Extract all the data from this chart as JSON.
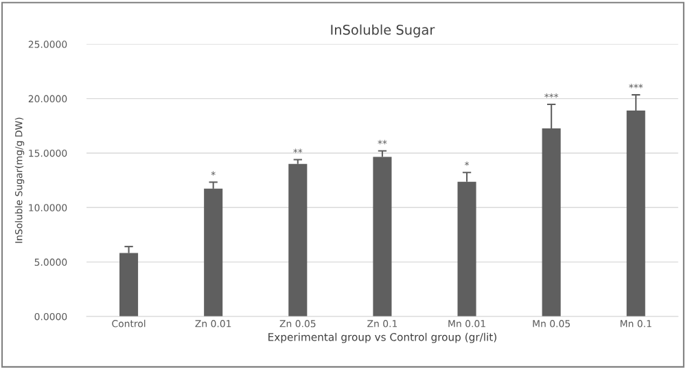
{
  "chart_data": {
    "type": "bar",
    "title": "InSoluble Sugar",
    "xlabel": "Experimental group vs Control group (gr/lit)",
    "ylabel": "InSoluble Sugar(mg/g DW)",
    "categories": [
      "Control",
      "Zn 0.01",
      "Zn 0.05",
      "Zn 0.1",
      "Mn 0.01",
      "Mn 0.05",
      "Mn 0.1"
    ],
    "values": [
      5.82,
      11.73,
      14.0,
      14.65,
      12.37,
      17.27,
      18.9
    ],
    "errors": [
      [
        5.82,
        6.42
      ],
      [
        11.73,
        12.33
      ],
      [
        14.0,
        14.4
      ],
      [
        14.65,
        15.2
      ],
      [
        12.37,
        13.22
      ],
      [
        17.27,
        19.47
      ],
      [
        18.9,
        20.35
      ]
    ],
    "color": "#5f5f5f",
    "ylim": [
      0,
      25
    ],
    "yticks": [
      {
        "value": 0,
        "label": "0.0000"
      },
      {
        "value": 5,
        "label": "5.0000"
      },
      {
        "value": 10,
        "label": "10.0000"
      },
      {
        "value": 15,
        "label": "15.0000"
      },
      {
        "value": 20,
        "label": "20.0000"
      },
      {
        "value": 25,
        "label": "25.0000"
      }
    ],
    "grid": "y",
    "annotations": [
      {
        "text": "*",
        "x": "Zn 0.01",
        "y": 12.33
      },
      {
        "text": "**",
        "x": "Zn 0.05",
        "y": 14.4
      },
      {
        "text": "**",
        "x": "Zn 0.1",
        "y": 15.2
      },
      {
        "text": "*",
        "x": "Mn 0.01",
        "y": 13.22
      },
      {
        "text": "***",
        "x": "Mn 0.05",
        "y": 19.47
      },
      {
        "text": "***",
        "x": "Mn 0.1",
        "y": 20.35
      }
    ]
  }
}
